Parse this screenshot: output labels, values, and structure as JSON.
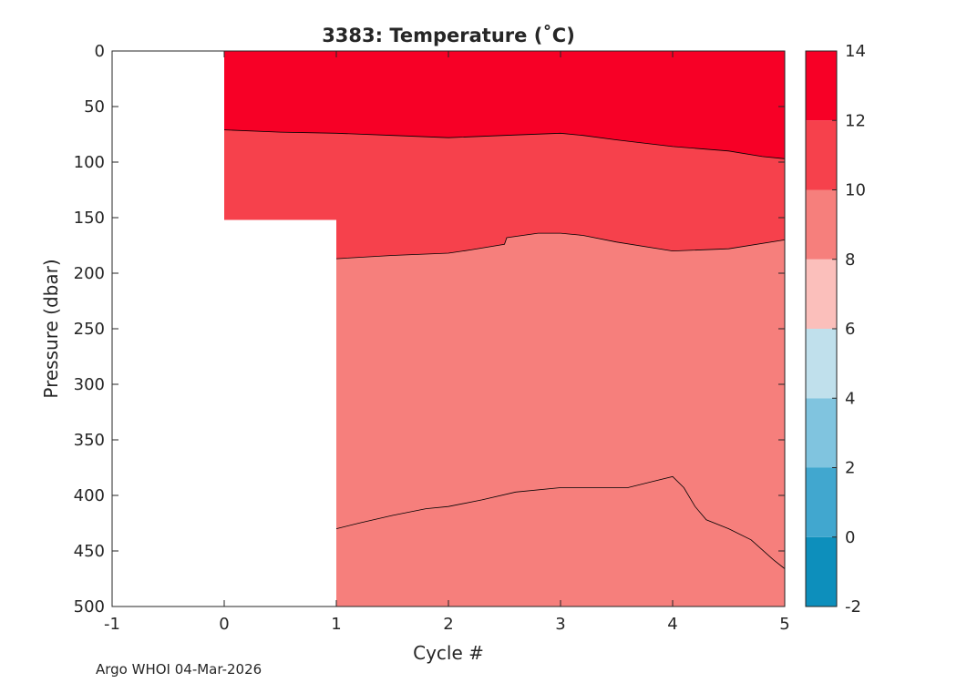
{
  "chart_data": {
    "type": "contour",
    "title": "3383:  Temperature (˚C)",
    "xlabel": "Cycle #",
    "ylabel": "Pressure (dbar)",
    "xlim": [
      -1,
      5
    ],
    "ylim": [
      0,
      500
    ],
    "y_reversed": true,
    "xticks": [
      "-1",
      "0",
      "1",
      "2",
      "3",
      "4",
      "5"
    ],
    "yticks": [
      "0",
      "50",
      "100",
      "150",
      "200",
      "250",
      "300",
      "350",
      "400",
      "450",
      "500"
    ],
    "colorbar": {
      "min": -2,
      "max": 14,
      "ticks": [
        "-2",
        "0",
        "2",
        "4",
        "6",
        "8",
        "10",
        "12",
        "14"
      ],
      "bands": [
        {
          "from": -2,
          "to": 0,
          "color": "#0d8fbc"
        },
        {
          "from": 0,
          "to": 2,
          "color": "#41a7cf"
        },
        {
          "from": 2,
          "to": 4,
          "color": "#80c4df"
        },
        {
          "from": 4,
          "to": 6,
          "color": "#c0e0ec"
        },
        {
          "from": 6,
          "to": 8,
          "color": "#fbbfbb"
        },
        {
          "from": 8,
          "to": 10,
          "color": "#f67f7c"
        },
        {
          "from": 10,
          "to": 12,
          "color": "#f6414c"
        },
        {
          "from": 12,
          "to": 14,
          "color": "#f70026"
        }
      ]
    },
    "data_coverage": [
      {
        "cycle_start": 0,
        "cycle_end": 1,
        "max_pressure": 152
      },
      {
        "cycle_start": 1,
        "cycle_end": 5,
        "max_pressure": 500
      }
    ],
    "contours": [
      {
        "level": 12,
        "points": [
          [
            0,
            71
          ],
          [
            0.5,
            73
          ],
          [
            1,
            74
          ],
          [
            1.5,
            76
          ],
          [
            2,
            78
          ],
          [
            2.5,
            76
          ],
          [
            3,
            74
          ],
          [
            3.2,
            76
          ],
          [
            3.5,
            80
          ],
          [
            4,
            86
          ],
          [
            4.5,
            90
          ],
          [
            4.8,
            95
          ],
          [
            5,
            97
          ]
        ]
      },
      {
        "level": 10,
        "points": [
          [
            1,
            187
          ],
          [
            1.5,
            184
          ],
          [
            2,
            182
          ],
          [
            2.2,
            179
          ],
          [
            2.5,
            174
          ],
          [
            2.52,
            168
          ],
          [
            2.8,
            164
          ],
          [
            3,
            164
          ],
          [
            3.2,
            166
          ],
          [
            3.5,
            172
          ],
          [
            4,
            180
          ],
          [
            4.5,
            178
          ],
          [
            5,
            170
          ]
        ]
      },
      {
        "level": 8,
        "points": [
          [
            1,
            430
          ],
          [
            1.2,
            425
          ],
          [
            1.5,
            418
          ],
          [
            1.8,
            412
          ],
          [
            2,
            410
          ],
          [
            2.3,
            404
          ],
          [
            2.6,
            397
          ],
          [
            3,
            393
          ],
          [
            3.3,
            393
          ],
          [
            3.6,
            393
          ],
          [
            3.8,
            388
          ],
          [
            4,
            383
          ],
          [
            4.1,
            393
          ],
          [
            4.2,
            410
          ],
          [
            4.3,
            422
          ],
          [
            4.5,
            430
          ],
          [
            4.7,
            440
          ],
          [
            4.9,
            458
          ],
          [
            5,
            466
          ]
        ]
      }
    ]
  },
  "footer": "Argo WHOI 04-Mar-2026"
}
